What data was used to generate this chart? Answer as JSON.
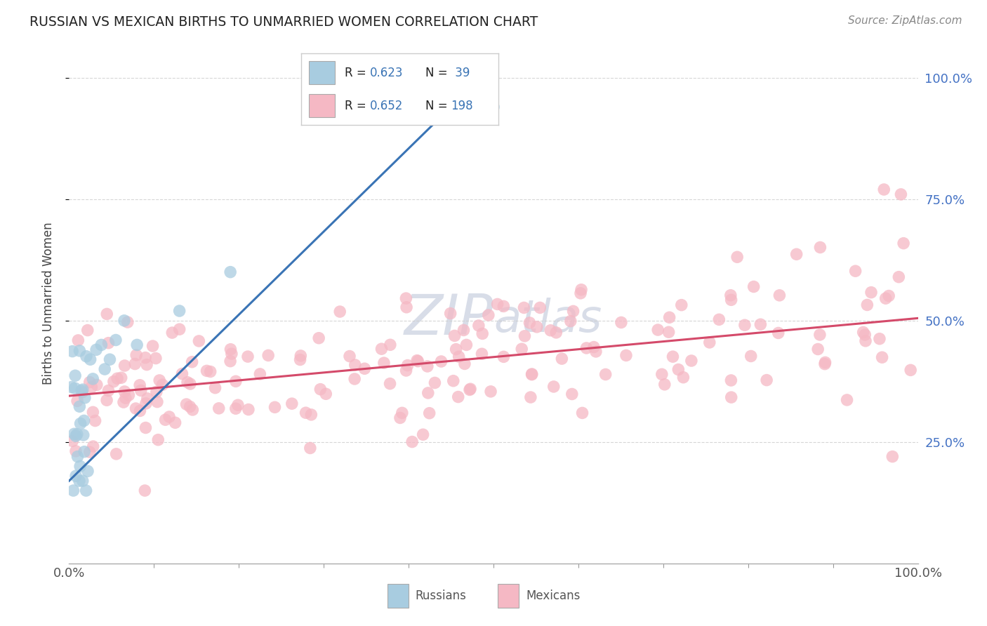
{
  "title": "RUSSIAN VS MEXICAN BIRTHS TO UNMARRIED WOMEN CORRELATION CHART",
  "source": "Source: ZipAtlas.com",
  "ylabel": "Births to Unmarried Women",
  "right_yticks": [
    "100.0%",
    "75.0%",
    "50.0%",
    "25.0%"
  ],
  "right_ytick_vals": [
    1.0,
    0.75,
    0.5,
    0.25
  ],
  "russian_r": "0.623",
  "russian_n": "39",
  "mexican_r": "0.652",
  "mexican_n": "198",
  "russian_dot_color": "#a8cce0",
  "mexican_dot_color": "#f5b8c4",
  "russian_line_color": "#3a74b5",
  "mexican_line_color": "#d44a6a",
  "background_color": "#ffffff",
  "watermark_color": "#d8dde8",
  "xlim": [
    0.0,
    1.0
  ],
  "ylim": [
    0.0,
    1.07
  ],
  "russian_line_x0": 0.0,
  "russian_line_y0": 0.17,
  "russian_line_x1": 0.485,
  "russian_line_y1": 1.0,
  "mexican_line_x0": 0.0,
  "mexican_line_y0": 0.345,
  "mexican_line_x1": 1.0,
  "mexican_line_y1": 0.505
}
